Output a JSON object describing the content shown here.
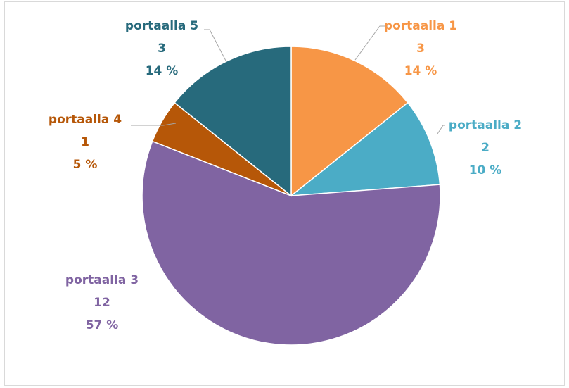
{
  "chart_data": {
    "type": "pie",
    "categories": [
      "portaalla 1",
      "portaalla 2",
      "portaalla 3",
      "portaalla 4",
      "portaalla 5"
    ],
    "values": [
      3,
      2,
      12,
      1,
      3
    ],
    "percent_labels": [
      "14 %",
      "10 %",
      "57 %",
      "5 %",
      "14 %"
    ],
    "colors": [
      "#f79646",
      "#4bacc6",
      "#8064a2",
      "#b65708",
      "#276a7c"
    ]
  }
}
